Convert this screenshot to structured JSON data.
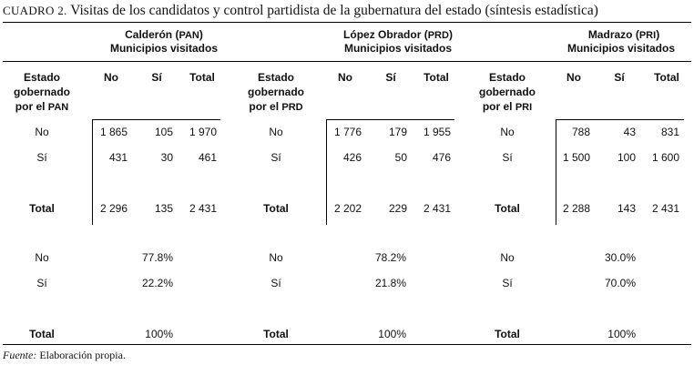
{
  "title": {
    "label": "CUADRO 2.",
    "text": "Visitas de los candidatos y control partidista de la gubernatura del estado (síntesis estadística)"
  },
  "row_header": {
    "line1": "Estado",
    "line2": "gobernado",
    "line3": "por el"
  },
  "col_headers": {
    "no": "No",
    "si": "Sí",
    "total": "Total"
  },
  "row_labels": {
    "no": "No",
    "si": "Sí",
    "total": "Total"
  },
  "panels": [
    {
      "name": "Calderón",
      "party": "PAN",
      "subtitle": "Municipios visitados",
      "counts": {
        "no": [
          "1 865",
          "105",
          "1 970"
        ],
        "si": [
          "431",
          "30",
          "461"
        ],
        "total": [
          "2 296",
          "135",
          "2 431"
        ]
      },
      "pct": {
        "no": "77.8%",
        "si": "22.2%",
        "total": "100%"
      }
    },
    {
      "name": "López Obrador",
      "party": "PRD",
      "subtitle": "Municipios visitados",
      "counts": {
        "no": [
          "1 776",
          "179",
          "1 955"
        ],
        "si": [
          "426",
          "50",
          "476"
        ],
        "total": [
          "2 202",
          "229",
          "2 431"
        ]
      },
      "pct": {
        "no": "78.2%",
        "si": "21.8%",
        "total": "100%"
      }
    },
    {
      "name": "Madrazo",
      "party": "PRI",
      "subtitle": "Municipios visitados",
      "counts": {
        "no": [
          "788",
          "43",
          "831"
        ],
        "si": [
          "1 500",
          "100",
          "1 600"
        ],
        "total": [
          "2 288",
          "143",
          "2 431"
        ]
      },
      "pct": {
        "no": "30.0%",
        "si": "70.0%",
        "total": "100%"
      }
    }
  ],
  "source": {
    "label": "Fuente:",
    "text": "Elaboración propia."
  }
}
